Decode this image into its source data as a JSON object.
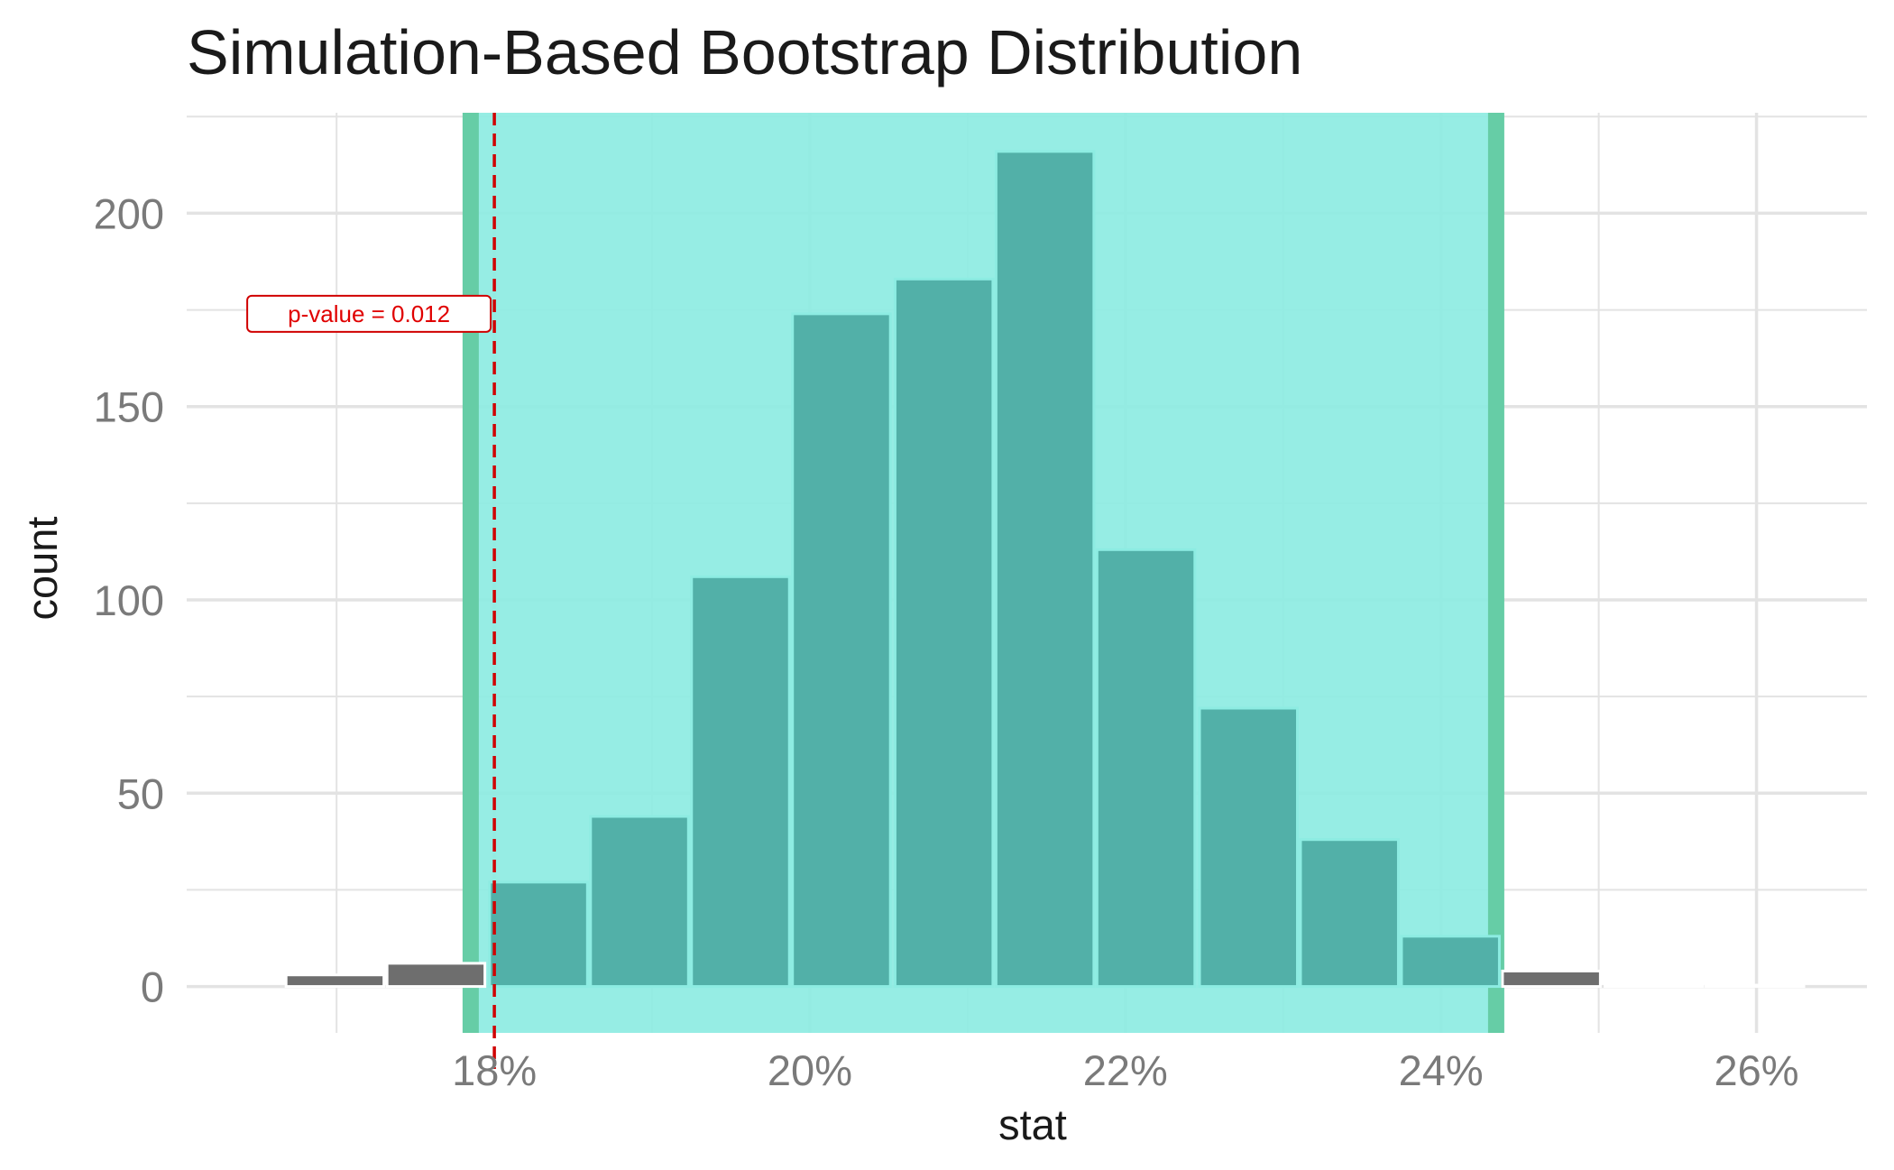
{
  "chart_data": {
    "type": "bar",
    "title": "Simulation-Based Bootstrap Distribution",
    "xlabel": "stat",
    "ylabel": "count",
    "xlim": [
      16.05,
      26.7
    ],
    "ylim": [
      -12,
      226
    ],
    "x_ticks": [
      18,
      20,
      22,
      24,
      26
    ],
    "x_tick_labels": [
      "18%",
      "20%",
      "22%",
      "24%",
      "26%"
    ],
    "y_ticks": [
      0,
      50,
      100,
      150,
      200
    ],
    "y_tick_labels": [
      "0",
      "50",
      "100",
      "150",
      "200"
    ],
    "grid": true,
    "bin_width": 0.643,
    "series": [
      {
        "bins": [
          {
            "x": 16.99,
            "count": 3
          },
          {
            "x": 17.63,
            "count": 6
          },
          {
            "x": 18.28,
            "count": 27
          },
          {
            "x": 18.92,
            "count": 44
          },
          {
            "x": 19.56,
            "count": 106
          },
          {
            "x": 20.2,
            "count": 174
          },
          {
            "x": 20.85,
            "count": 183
          },
          {
            "x": 21.49,
            "count": 216
          },
          {
            "x": 22.13,
            "count": 113
          },
          {
            "x": 22.78,
            "count": 72
          },
          {
            "x": 23.42,
            "count": 38
          },
          {
            "x": 24.06,
            "count": 13
          },
          {
            "x": 24.7,
            "count": 4
          },
          {
            "x": 25.35,
            "count": 0
          },
          {
            "x": 25.99,
            "count": 0
          }
        ]
      }
    ],
    "confidence_interval": {
      "lower": 17.85,
      "upper": 24.35
    },
    "observed_stat": 18.0,
    "annotation": "p-value = 0.012",
    "colors": {
      "ci_fill": "#8dece2",
      "ci_border": "#66cda6",
      "bar_in_ci": "#52b0a8",
      "bar_outside": "#6e6e6e",
      "bar_outline_in_ci": "#8dece2",
      "stat_line": "#d00000",
      "grid": "#e3e3e3"
    }
  }
}
